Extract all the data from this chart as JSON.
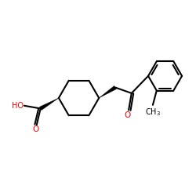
{
  "bg_color": "#ffffff",
  "bond_color": "#000000",
  "o_color": "#ff0000",
  "line_width": 1.5,
  "fig_size": [
    2.5,
    2.5
  ],
  "dpi": 100,
  "xlim": [
    0,
    10
  ],
  "ylim": [
    0,
    10
  ]
}
